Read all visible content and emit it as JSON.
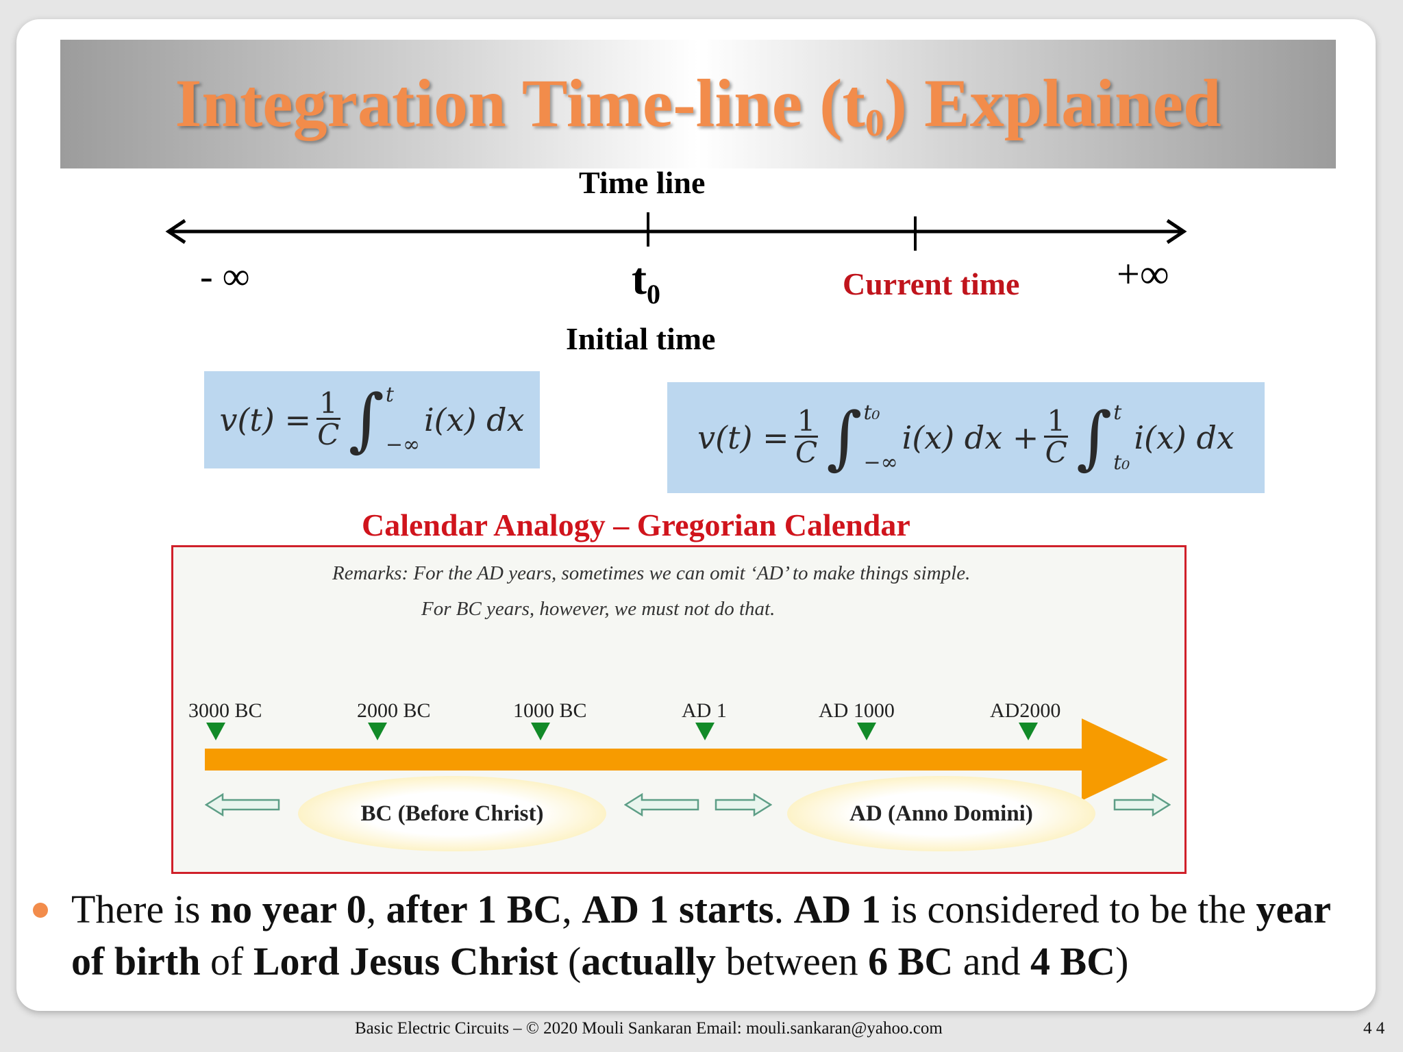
{
  "title": {
    "main": "Integration Time-line (t",
    "sub": "0",
    "end": ") Explained"
  },
  "timeline": {
    "heading": "Time line",
    "neg_inf": "- ∞",
    "pos_inf": "+∞",
    "t0_main": "t",
    "t0_sub": "0",
    "current_time": "Current time",
    "initial_time": "Initial time"
  },
  "formula1": {
    "lhs": "v(t) =",
    "frac_num": "1",
    "frac_den": "C",
    "int_upper": "t",
    "int_lower": "−∞",
    "integrand": "i(x) dx"
  },
  "formula2": {
    "lhs": "v(t) =",
    "frac1_num": "1",
    "frac1_den": "C",
    "int1_upper": "t₀",
    "int1_lower": "−∞",
    "integrand1": "i(x) dx +",
    "frac2_num": "1",
    "frac2_den": "C",
    "int2_upper": "t",
    "int2_lower": "t₀",
    "integrand2": "i(x) dx"
  },
  "calendar": {
    "heading": "Calendar Analogy – Gregorian Calendar",
    "remark1": "Remarks:  For the AD years, sometimes we can omit ‘AD’ to make things simple.",
    "remark2": "For BC years, however, we must not do that.",
    "years": [
      "3000 BC",
      "2000 BC",
      "1000 BC",
      "AD 1",
      "AD 1000",
      "AD2000"
    ],
    "bc_label": "BC (Before Christ)",
    "ad_label": "AD (Anno Domini)"
  },
  "bullet": {
    "p1": "There is ",
    "b1": "no year 0",
    "p2": ", ",
    "b2": "after 1 BC",
    "p3": ", ",
    "b3": "AD 1 starts",
    "p4": ". ",
    "b4": "AD 1",
    "p5": " is considered to be the ",
    "b5": "year of  birth",
    "p6": " of ",
    "b6": "Lord Jesus Christ",
    "p7": " (",
    "b7": "actually",
    "p8": " between ",
    "b8": "6 BC",
    "p9": " and ",
    "b9": "4 BC",
    "p10": ")"
  },
  "footer": {
    "text": "Basic Electric Circuits – © 2020 Mouli Sankaran   Email: mouli.sankaran@yahoo.com",
    "page": "4 4"
  },
  "colors": {
    "title": "#f28c4b",
    "accent_red": "#c0141c",
    "formula_bg": "#bcd7ef",
    "arrow_orange": "#f79b00",
    "marker_green": "#128a28"
  }
}
